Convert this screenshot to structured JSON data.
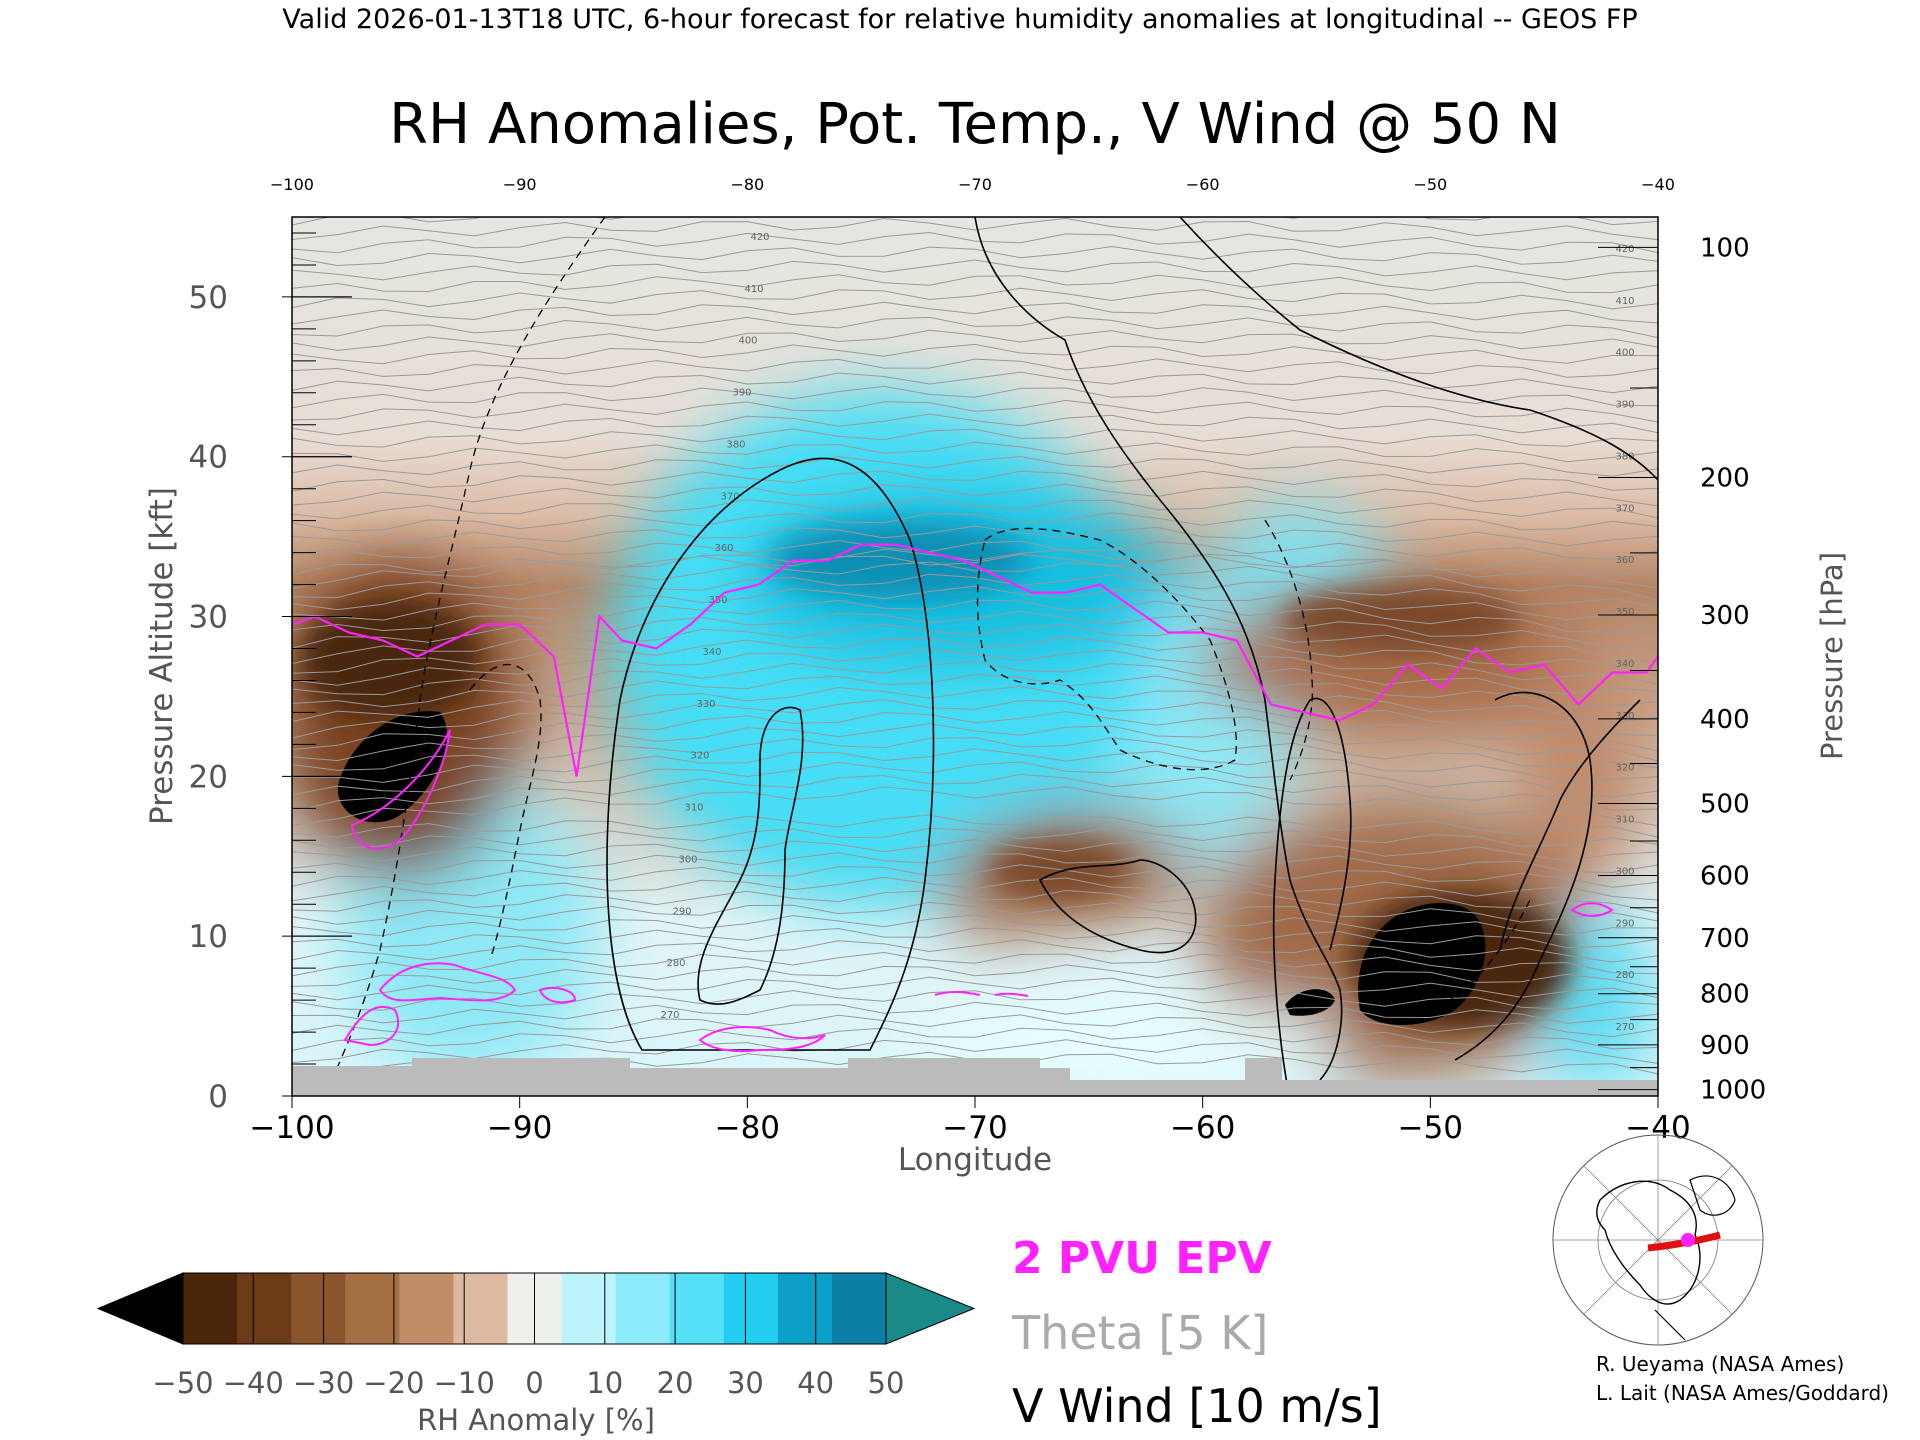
{
  "header": "Valid 2026-01-13T18 UTC, 6-hour forecast for relative humidity anomalies at longitudinal -- GEOS FP",
  "chart_data": {
    "type": "heatmap",
    "title": "RH Anomalies, Pot. Temp., V Wind @ 50 N",
    "xlabel": "Longitude",
    "ylabel": "Pressure Altitude [kft]",
    "y2label": "Pressure [hPa]",
    "xlim": [
      -100,
      -40
    ],
    "ylim": [
      0,
      55
    ],
    "x_ticks": [
      -100,
      -90,
      -80,
      -70,
      -60,
      -50,
      -40
    ],
    "x_ticks_top": [
      -100,
      -90,
      -80,
      -70,
      -60,
      -50,
      -40
    ],
    "y_ticks": [
      0,
      10,
      20,
      30,
      40,
      50
    ],
    "pressure_ticks": [
      {
        "hPa": 100,
        "kft": 53.1
      },
      {
        "hPa": 200,
        "kft": 38.7
      },
      {
        "hPa": 300,
        "kft": 30.1
      },
      {
        "hPa": 400,
        "kft": 23.6
      },
      {
        "hPa": 500,
        "kft": 18.3
      },
      {
        "hPa": 600,
        "kft": 13.8
      },
      {
        "hPa": 700,
        "kft": 9.9
      },
      {
        "hPa": 800,
        "kft": 6.4
      },
      {
        "hPa": 900,
        "kft": 3.2
      },
      {
        "hPa": 1000,
        "kft": 0.4
      }
    ],
    "theta_labels": [
      420,
      410,
      400,
      390,
      380,
      370,
      360,
      350,
      340,
      330,
      320,
      310,
      300,
      290,
      280,
      270
    ],
    "epv_2pvu_line": {
      "x": [
        -100,
        -99,
        -97.5,
        -96,
        -94.5,
        -93,
        -91.5,
        -90,
        -88.5,
        -87.5,
        -86.5,
        -85.5,
        -84,
        -82.5,
        -81,
        -79.5,
        -78,
        -76.5,
        -75,
        -73.5,
        -72,
        -70.5,
        -69,
        -67.5,
        -66,
        -64.5,
        -63,
        -61.5,
        -60,
        -58.5,
        -57,
        -55.5,
        -54,
        -52.5,
        -51,
        -49.5,
        -48,
        -46.5,
        -45,
        -43.5,
        -42,
        -40.5,
        -40
      ],
      "y": [
        29.5,
        30,
        29,
        28.5,
        27.5,
        28.5,
        29.5,
        29.5,
        27.5,
        20,
        30,
        28.5,
        28,
        29.5,
        31.5,
        32,
        33.5,
        33.5,
        34.5,
        34.5,
        34,
        33.5,
        32.5,
        31.5,
        31.5,
        32,
        30.5,
        29,
        29,
        28.5,
        24.5,
        24,
        23.5,
        24.5,
        27,
        25.5,
        28,
        26.5,
        27,
        24.5,
        26.5,
        26.5,
        27.5
      ]
    },
    "rh_anomaly_colorbar": {
      "label": "RH Anomaly [%]",
      "ticks": [
        -50,
        -40,
        -30,
        -20,
        -10,
        0,
        10,
        20,
        30,
        40,
        50
      ],
      "colors": [
        "#4a2509",
        "#6b3a17",
        "#8a552c",
        "#a56f44",
        "#c08d68",
        "#dcb9a0",
        "#eef0ec",
        "#bdf4fc",
        "#8cecfb",
        "#55e0f8",
        "#22cdf0",
        "#0aa0c8",
        "#0e7fa4"
      ],
      "under_color": "#000000",
      "over_color": "#1a8a88"
    },
    "legend": {
      "epv": "2 PVU EPV",
      "theta": "Theta [5 K]",
      "vwind": "V Wind [10 m/s]"
    },
    "colors": {
      "epv": "#ff22ff",
      "theta": "#999999",
      "vwind": "#000000",
      "terrain": "#bbbbbb"
    }
  },
  "credits": {
    "line1": "R. Ueyama (NASA Ames)",
    "line2": "L. Lait (NASA Ames/Goddard)"
  }
}
